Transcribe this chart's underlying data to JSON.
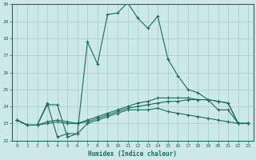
{
  "xlabel": "Humidex (Indice chaleur)",
  "bg_color": "#cce8e8",
  "line_color": "#1a6b5a",
  "grid_color": "#aed0d0",
  "xlim": [
    -0.5,
    23.5
  ],
  "ylim": [
    22,
    30
  ],
  "xtick_labels": [
    "0",
    "1",
    "2",
    "3",
    "4",
    "5",
    "6",
    "7",
    "8",
    "9",
    "10",
    "11",
    "12",
    "13",
    "14",
    "15",
    "16",
    "17",
    "18",
    "19",
    "20",
    "21",
    "22",
    "23"
  ],
  "yticks": [
    22,
    23,
    24,
    25,
    26,
    27,
    28,
    29,
    30
  ],
  "series": [
    [
      23.2,
      22.9,
      22.9,
      24.2,
      22.2,
      22.4,
      22.4,
      27.8,
      26.5,
      29.4,
      29.5,
      30.1,
      29.2,
      28.6,
      29.3,
      26.8,
      25.8,
      25.0,
      24.8,
      24.4,
      23.8,
      23.8,
      23.0,
      23.0
    ],
    [
      23.2,
      22.9,
      22.9,
      24.1,
      24.1,
      22.2,
      22.4,
      23.0,
      23.2,
      23.4,
      23.6,
      23.8,
      23.8,
      23.8,
      23.9,
      23.7,
      23.6,
      23.5,
      23.4,
      23.3,
      23.2,
      23.1,
      23.0,
      23.0
    ],
    [
      23.2,
      22.9,
      22.9,
      23.0,
      23.1,
      23.0,
      23.0,
      23.1,
      23.3,
      23.5,
      23.7,
      23.9,
      24.0,
      24.1,
      24.2,
      24.3,
      24.3,
      24.4,
      24.4,
      24.4,
      24.3,
      24.2,
      23.0,
      23.0
    ],
    [
      23.2,
      22.9,
      22.9,
      23.1,
      23.2,
      23.1,
      23.0,
      23.2,
      23.4,
      23.6,
      23.8,
      24.0,
      24.2,
      24.3,
      24.5,
      24.5,
      24.5,
      24.5,
      24.4,
      24.4,
      24.3,
      24.2,
      23.0,
      23.0
    ]
  ]
}
